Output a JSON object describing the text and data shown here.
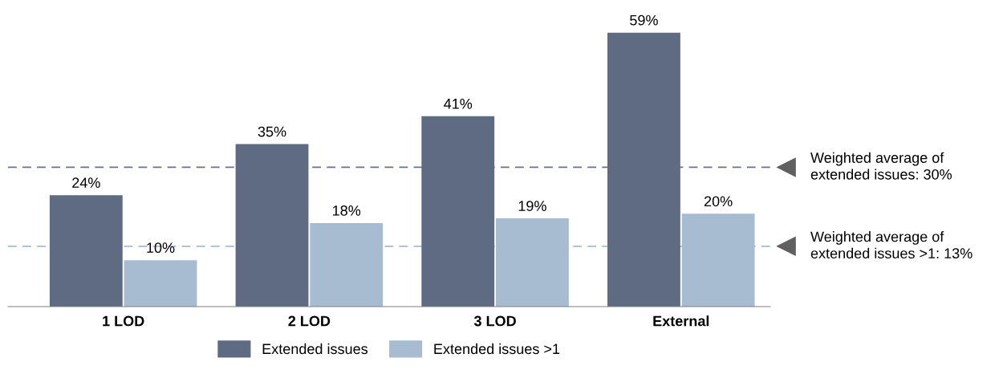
{
  "chart_data": {
    "type": "bar",
    "categories": [
      "1 LOD",
      "2 LOD",
      "3 LOD",
      "External"
    ],
    "series": [
      {
        "name": "Extended issues",
        "color": "#5f6b82",
        "values": [
          24,
          35,
          41,
          59
        ],
        "value_labels": [
          "24%",
          "35%",
          "41%",
          "59%"
        ]
      },
      {
        "name": "Extended issues >1",
        "color": "#a7bbd1",
        "values": [
          10,
          18,
          19,
          20
        ],
        "value_labels": [
          "10%",
          "18%",
          "19%",
          "20%"
        ]
      }
    ],
    "ref_lines": [
      {
        "axis": "y",
        "value": 30,
        "label": "Weighted average of\nextended issues: 30%",
        "color": "#6b7389",
        "line_style": "dashed"
      },
      {
        "axis": "y",
        "value": 13,
        "label": "Weighted average of\nextended issues >1: 13%",
        "color": "#a7bbd1",
        "line_style": "dashed"
      }
    ],
    "legend": "bottom",
    "grid": false
  }
}
